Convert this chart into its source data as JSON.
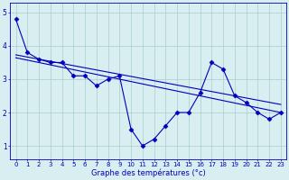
{
  "x": [
    0,
    1,
    2,
    3,
    4,
    5,
    6,
    7,
    8,
    9,
    10,
    11,
    12,
    13,
    14,
    15,
    16,
    17,
    18,
    19,
    20,
    21,
    22,
    23
  ],
  "y_main": [
    4.8,
    3.8,
    3.6,
    3.5,
    3.5,
    3.1,
    3.1,
    2.8,
    3.0,
    3.1,
    1.5,
    1.0,
    1.2,
    1.6,
    2.0,
    2.0,
    2.6,
    3.5,
    3.3,
    2.5,
    2.3,
    2.0,
    1.8,
    2.0
  ],
  "trend1_x": [
    2,
    19
  ],
  "trend1_y": [
    3.6,
    2.5
  ],
  "trend2_x": [
    2,
    23
  ],
  "trend2_y": [
    3.5,
    2.0
  ],
  "line_color": "#0000bb",
  "bg_color": "#d8eef0",
  "xlabel": "Graphe des températures (°c)",
  "ylim": [
    0.6,
    5.3
  ],
  "xlim": [
    -0.5,
    23.5
  ],
  "yticks": [
    1,
    2,
    3,
    4,
    5
  ],
  "xticks": [
    0,
    1,
    2,
    3,
    4,
    5,
    6,
    7,
    8,
    9,
    10,
    11,
    12,
    13,
    14,
    15,
    16,
    17,
    18,
    19,
    20,
    21,
    22,
    23
  ],
  "grid_color": "#aacccc",
  "marker": "D",
  "marker_size": 2.5,
  "linewidth": 0.8,
  "tick_fontsize": 5.0,
  "xlabel_fontsize": 6.0
}
